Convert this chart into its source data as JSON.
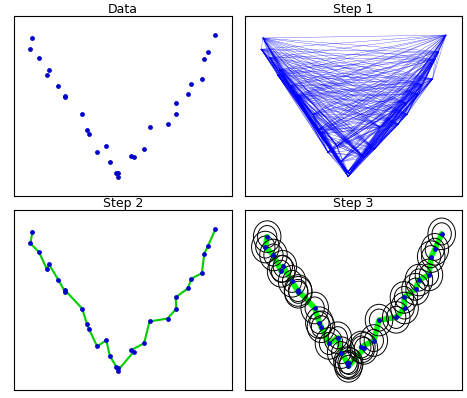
{
  "subplot_titles": [
    "Data",
    "Step 1",
    "Step 2",
    "Step 3"
  ],
  "point_color": "#0000cc",
  "line_color_step1": "#0000ff",
  "line_color_step2": "#00cc00",
  "circle_color": "#000000",
  "highlight_color": "#00ff00",
  "n_points": 30,
  "seed": 7,
  "figsize": [
    4.67,
    3.98
  ],
  "dpi": 100
}
